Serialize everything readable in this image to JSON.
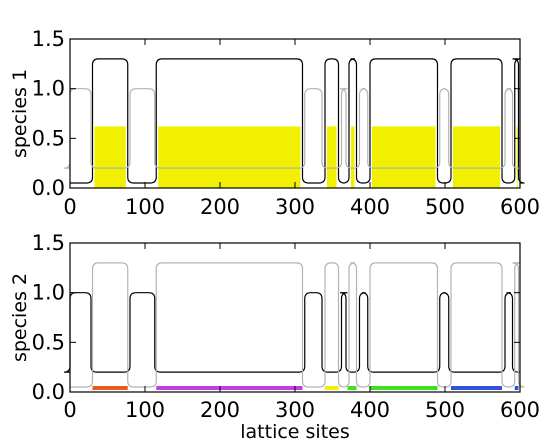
{
  "chart_data": [
    {
      "type": "line",
      "ylabel": "species 1",
      "xlabel": "",
      "xlim": [
        0,
        600
      ],
      "ylim": [
        0,
        1.5
      ],
      "xticks": [
        "0",
        "100",
        "200",
        "300",
        "400",
        "500",
        "600"
      ],
      "yticks": [
        "0.0",
        "0.5",
        "1.0",
        "1.5"
      ],
      "series": [
        {
          "color": "#000000",
          "high": 1.3,
          "low": 0.05,
          "segments": [
            [
              30,
              77
            ],
            [
              115,
              310
            ],
            [
              340,
              358
            ],
            [
              372,
              382
            ],
            [
              400,
              490
            ],
            [
              508,
              576
            ],
            [
              593,
              598
            ]
          ]
        },
        {
          "color": "#b3b3b3",
          "high": 1.0,
          "low": 0.2,
          "segments": [
            [
              0,
              28
            ],
            [
              80,
              113
            ],
            [
              313,
              336
            ],
            [
              362,
              368
            ],
            [
              386,
              397
            ],
            [
              493,
              505
            ],
            [
              580,
              590
            ]
          ]
        }
      ],
      "fills": [
        {
          "color": "#f0f000",
          "value": 0.62,
          "segments": [
            [
              30,
              77
            ],
            [
              115,
              310
            ],
            [
              340,
              358
            ],
            [
              372,
              382
            ],
            [
              400,
              490
            ],
            [
              508,
              576
            ],
            [
              593,
              598
            ]
          ]
        }
      ]
    },
    {
      "type": "line",
      "ylabel": "species 2",
      "xlabel": "lattice sites",
      "xlim": [
        0,
        600
      ],
      "ylim": [
        0,
        1.5
      ],
      "xticks": [
        "0",
        "100",
        "200",
        "300",
        "400",
        "500",
        "600"
      ],
      "yticks": [
        "0.0",
        "0.5",
        "1.0",
        "1.5"
      ],
      "series": [
        {
          "color": "#000000",
          "high": 1.0,
          "low": 0.2,
          "segments": [
            [
              0,
              28
            ],
            [
              80,
              113
            ],
            [
              313,
              336
            ],
            [
              362,
              368
            ],
            [
              386,
              397
            ],
            [
              493,
              505
            ],
            [
              580,
              590
            ]
          ]
        },
        {
          "color": "#b3b3b3",
          "high": 1.3,
          "low": 0.05,
          "segments": [
            [
              30,
              77
            ],
            [
              115,
              310
            ],
            [
              340,
              358
            ],
            [
              372,
              382
            ],
            [
              400,
              490
            ],
            [
              508,
              576
            ],
            [
              593,
              598
            ]
          ]
        }
      ],
      "bars": [
        {
          "color": "#e85a1e",
          "range": [
            30,
            77
          ]
        },
        {
          "color": "#c040e8",
          "range": [
            115,
            310
          ]
        },
        {
          "color": "#f0f000",
          "range": [
            340,
            358
          ]
        },
        {
          "color": "#40e020",
          "range": [
            370,
            382
          ]
        },
        {
          "color": "#40e020",
          "range": [
            400,
            490
          ]
        },
        {
          "color": "#3050e0",
          "range": [
            508,
            576
          ]
        },
        {
          "color": "#3050e0",
          "range": [
            593,
            598
          ]
        }
      ]
    }
  ]
}
